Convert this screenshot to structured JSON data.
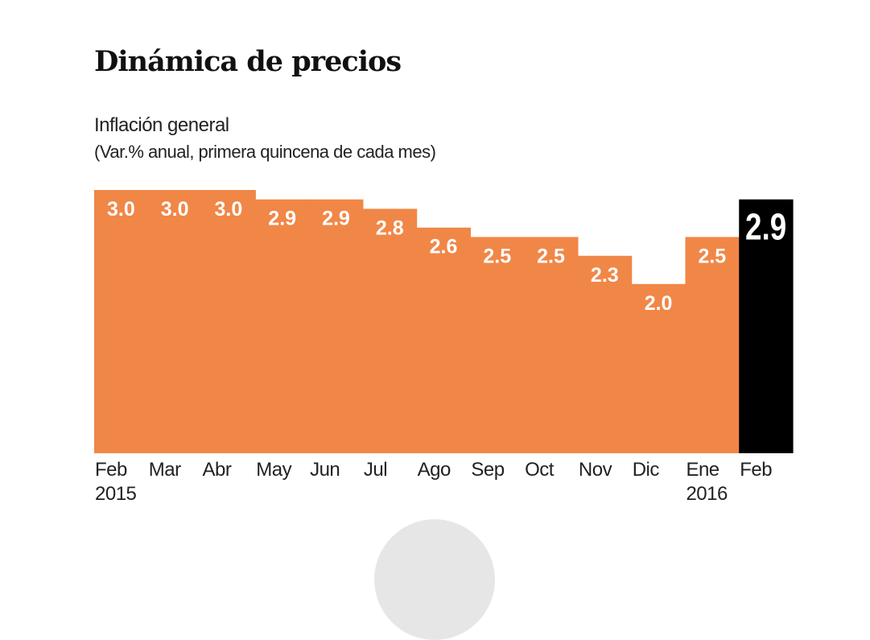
{
  "chart_data": {
    "type": "bar",
    "title": "Dinámica de precios",
    "subtitle": "Inflación general",
    "note": "(Var.% anual, primera quincena de cada mes)",
    "categories": [
      "Feb\n2015",
      "Mar",
      "Abr",
      "May",
      "Jun",
      "Jul",
      "Ago",
      "Sep",
      "Oct",
      "Nov",
      "Dic",
      "Ene\n2016",
      "Feb"
    ],
    "values": [
      3.0,
      3.0,
      3.0,
      2.9,
      2.9,
      2.8,
      2.6,
      2.5,
      2.5,
      2.3,
      2.0,
      2.5,
      2.9
    ],
    "value_labels": [
      "3.0",
      "3.0",
      "3.0",
      "2.9",
      "2.9",
      "2.8",
      "2.6",
      "2.5",
      "2.5",
      "2.3",
      "2.0",
      "2.5",
      "2.9"
    ],
    "highlight_index": 12,
    "ylim": [
      0.2,
      3.0
    ],
    "grid": false,
    "colors": {
      "bar": "#F08747",
      "highlight": "#000000",
      "label": "#ffffff"
    }
  }
}
